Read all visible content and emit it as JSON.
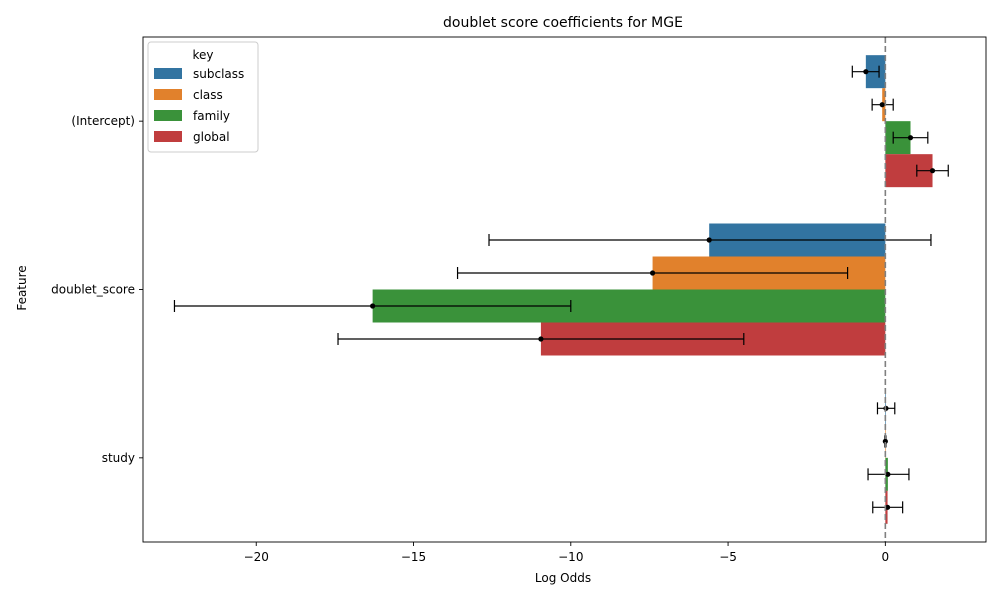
{
  "chart_data": {
    "type": "bar",
    "orientation": "horizontal",
    "title": "doublet score coefficients for MGE",
    "xlabel": "Log Odds",
    "ylabel": "Feature",
    "categories": [
      "(Intercept)",
      "doublet_score",
      "study"
    ],
    "xlim": [
      -23.6,
      3.2
    ],
    "xticks": [
      -20,
      -15,
      -10,
      -5,
      0
    ],
    "xtick_labels": [
      "−20",
      "−15",
      "−10",
      "−5",
      "0"
    ],
    "reference_line": {
      "x": 0,
      "style": "dashed",
      "color": "#808080"
    },
    "grid": false,
    "legend": {
      "title": "key",
      "position": "top-left"
    },
    "series": [
      {
        "name": "subclass",
        "color": "#3274a1",
        "values": [
          -0.62,
          -5.6,
          0.02
        ],
        "ci": [
          [
            -1.05,
            -0.2
          ],
          [
            -12.6,
            1.45
          ],
          [
            -0.25,
            0.3
          ]
        ]
      },
      {
        "name": "class",
        "color": "#e1812c",
        "values": [
          -0.1,
          -7.4,
          0.0
        ],
        "ci": [
          [
            -0.42,
            0.25
          ],
          [
            -13.6,
            -1.2
          ],
          [
            -0.02,
            0.02
          ]
        ]
      },
      {
        "name": "family",
        "color": "#3a923a",
        "values": [
          0.8,
          -16.3,
          0.08
        ],
        "ci": [
          [
            0.25,
            1.35
          ],
          [
            -22.6,
            -10.0
          ],
          [
            -0.55,
            0.75
          ]
        ]
      },
      {
        "name": "global",
        "color": "#c03d3e",
        "values": [
          1.5,
          -10.95,
          0.07
        ],
        "ci": [
          [
            1.0,
            2.0
          ],
          [
            -17.4,
            -4.5
          ],
          [
            -0.4,
            0.55
          ]
        ]
      }
    ]
  }
}
